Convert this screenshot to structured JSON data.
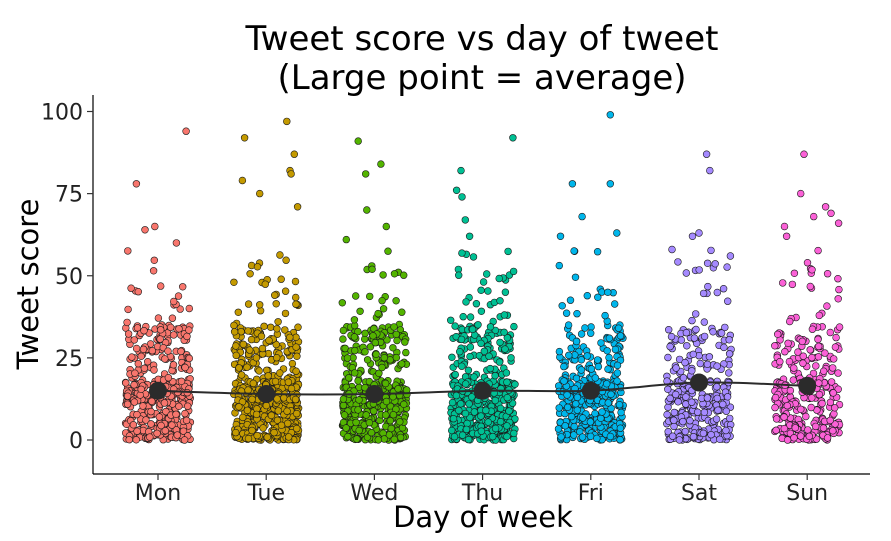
{
  "chart_data": {
    "type": "scatter",
    "title": "Tweet score vs day of tweet",
    "subtitle": "(Large point = average)",
    "xlabel": "Day of week",
    "ylabel": "Tweet score",
    "categories": [
      "Mon",
      "Tue",
      "Wed",
      "Thu",
      "Fri",
      "Sat",
      "Sun"
    ],
    "ylim": [
      -10,
      105
    ],
    "yticks": [
      0,
      25,
      50,
      75,
      100
    ],
    "grid": false,
    "legend": "none",
    "colors": [
      "#F8766D",
      "#C49A00",
      "#53B400",
      "#00C094",
      "#00B6EB",
      "#A58AFF",
      "#FB61D7"
    ],
    "averages": [
      15,
      14,
      14,
      15,
      15,
      17.5,
      16.5
    ],
    "point_counts": [
      420,
      560,
      450,
      480,
      380,
      300,
      310
    ],
    "outliers": [
      [
        [
          78,
          -0.2
        ],
        [
          94,
          0.26
        ],
        [
          65,
          -0.03
        ],
        [
          64,
          -0.12
        ],
        [
          60,
          0.17
        ]
      ],
      [
        [
          92,
          -0.2
        ],
        [
          97,
          0.19
        ],
        [
          87,
          0.26
        ],
        [
          82,
          0.22
        ],
        [
          81,
          0.23
        ],
        [
          79,
          -0.22
        ],
        [
          75,
          -0.06
        ],
        [
          71,
          0.29
        ]
      ],
      [
        [
          91,
          -0.15
        ],
        [
          84,
          0.06
        ],
        [
          81,
          -0.08
        ],
        [
          70,
          -0.07
        ],
        [
          65,
          0.11
        ],
        [
          61,
          -0.26
        ]
      ],
      [
        [
          92,
          0.28
        ],
        [
          82,
          -0.2
        ],
        [
          76,
          -0.24
        ],
        [
          74,
          -0.19
        ],
        [
          67,
          -0.16
        ],
        [
          62,
          -0.12
        ]
      ],
      [
        [
          99,
          0.18
        ],
        [
          78,
          -0.17
        ],
        [
          78,
          0.18
        ],
        [
          68,
          -0.08
        ],
        [
          63,
          0.24
        ],
        [
          62,
          -0.28
        ]
      ],
      [
        [
          87,
          0.07
        ],
        [
          82,
          0.1
        ],
        [
          63,
          0.0
        ],
        [
          62,
          -0.06
        ],
        [
          58,
          -0.25
        ],
        [
          56,
          0.29
        ]
      ],
      [
        [
          87,
          -0.03
        ],
        [
          75,
          -0.06
        ],
        [
          71,
          0.17
        ],
        [
          69,
          0.22
        ],
        [
          68,
          0.06
        ],
        [
          66,
          0.29
        ],
        [
          65,
          -0.21
        ],
        [
          62,
          -0.19
        ]
      ]
    ]
  }
}
